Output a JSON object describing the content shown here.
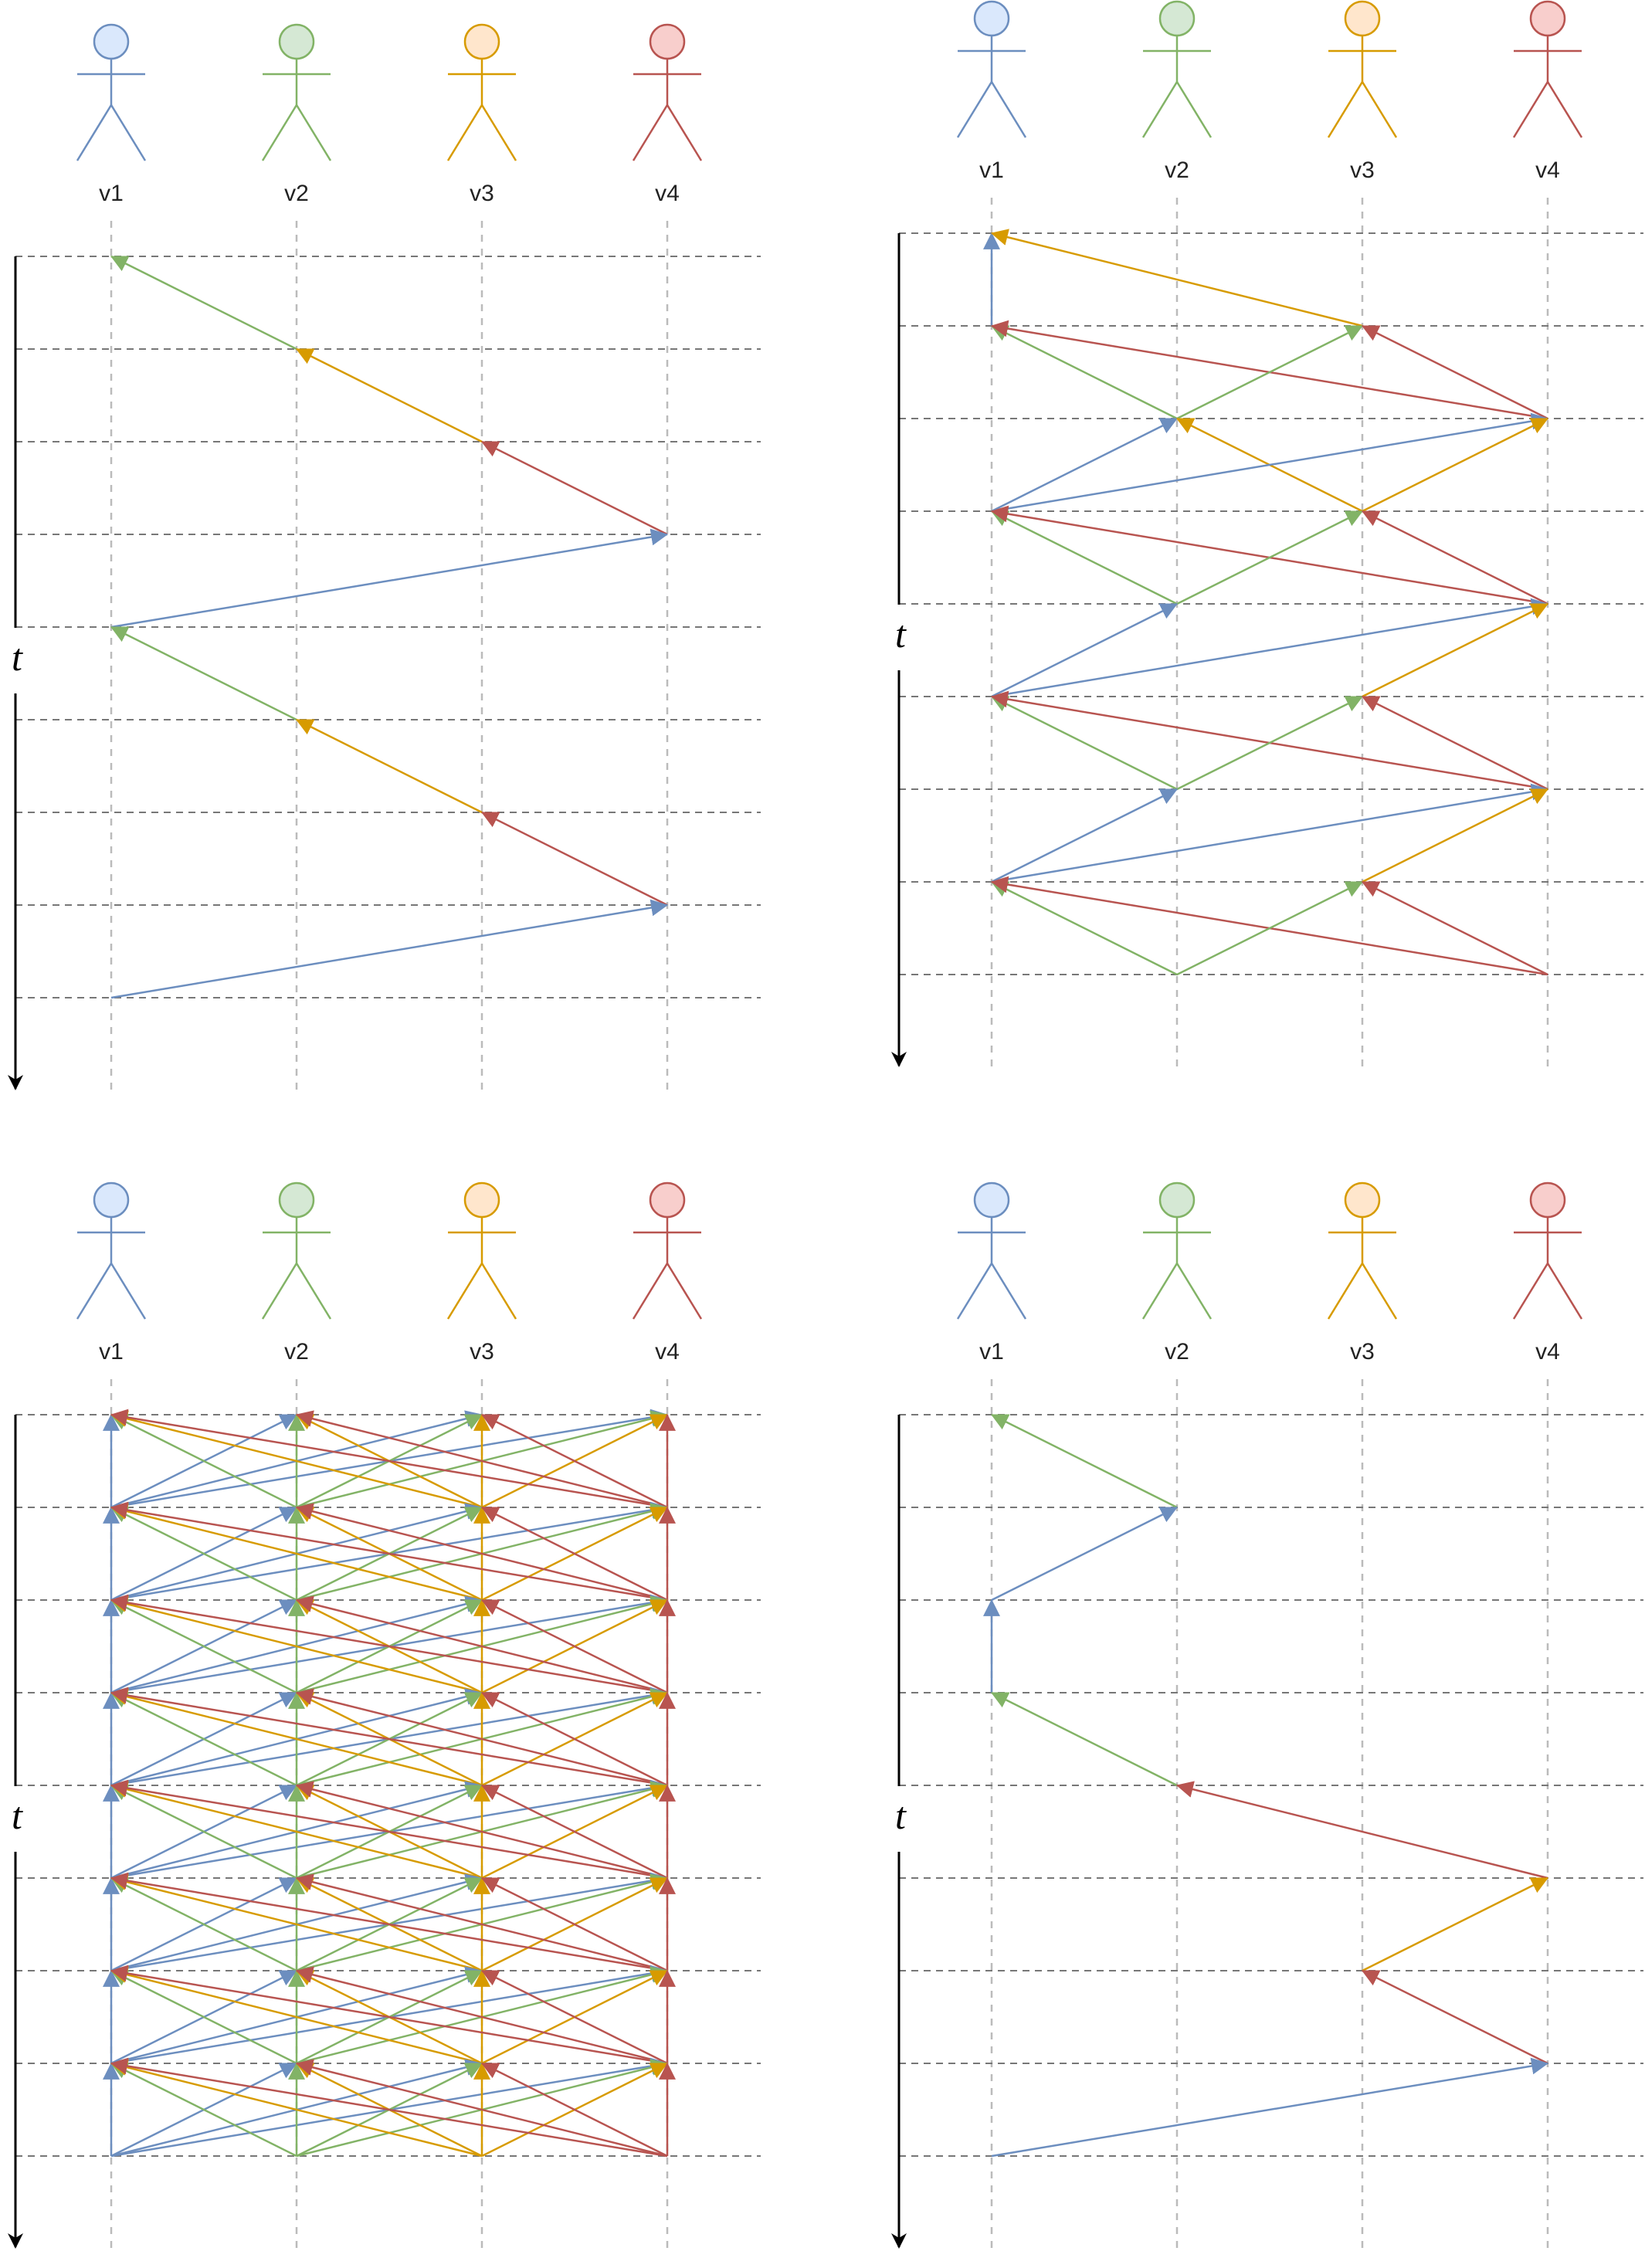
{
  "colors": {
    "v1": {
      "stroke": "#6c8ebf",
      "fill": "#dae8fc"
    },
    "v2": {
      "stroke": "#82b366",
      "fill": "#d5e8d4"
    },
    "v3": {
      "stroke": "#d79b00",
      "fill": "#ffe6cc"
    },
    "v4": {
      "stroke": "#b85450",
      "fill": "#f8cecc"
    },
    "lane": "#bbbbbb",
    "grid": "#777777",
    "axis": "#000000"
  },
  "panels": [
    {
      "name": "top-left",
      "actors": [
        "v1",
        "v2",
        "v3",
        "v4"
      ],
      "time_label": "t",
      "steps": 9,
      "edges": [
        {
          "from": [
            "v2",
            1
          ],
          "to": [
            "v1",
            0
          ]
        },
        {
          "from": [
            "v3",
            2
          ],
          "to": [
            "v2",
            1
          ]
        },
        {
          "from": [
            "v4",
            3
          ],
          "to": [
            "v3",
            2
          ]
        },
        {
          "from": [
            "v1",
            4
          ],
          "to": [
            "v4",
            3
          ]
        },
        {
          "from": [
            "v2",
            5
          ],
          "to": [
            "v1",
            4
          ]
        },
        {
          "from": [
            "v3",
            6
          ],
          "to": [
            "v2",
            5
          ]
        },
        {
          "from": [
            "v4",
            7
          ],
          "to": [
            "v3",
            6
          ]
        },
        {
          "from": [
            "v1",
            8
          ],
          "to": [
            "v4",
            7
          ]
        }
      ]
    },
    {
      "name": "top-right",
      "actors": [
        "v1",
        "v2",
        "v3",
        "v4"
      ],
      "time_label": "t",
      "steps": 9,
      "edges": [
        {
          "from": [
            "v1",
            1
          ],
          "to": [
            "v1",
            0
          ]
        },
        {
          "from": [
            "v3",
            1
          ],
          "to": [
            "v1",
            0
          ]
        },
        {
          "from": [
            "v2",
            2
          ],
          "to": [
            "v1",
            1
          ]
        },
        {
          "from": [
            "v4",
            2
          ],
          "to": [
            "v1",
            1
          ]
        },
        {
          "from": [
            "v2",
            2
          ],
          "to": [
            "v3",
            1
          ]
        },
        {
          "from": [
            "v4",
            2
          ],
          "to": [
            "v3",
            1
          ]
        },
        {
          "from": [
            "v1",
            3
          ],
          "to": [
            "v2",
            2
          ]
        },
        {
          "from": [
            "v3",
            3
          ],
          "to": [
            "v2",
            2
          ]
        },
        {
          "from": [
            "v1",
            3
          ],
          "to": [
            "v4",
            2
          ]
        },
        {
          "from": [
            "v3",
            3
          ],
          "to": [
            "v4",
            2
          ]
        },
        {
          "from": [
            "v2",
            4
          ],
          "to": [
            "v1",
            3
          ]
        },
        {
          "from": [
            "v4",
            4
          ],
          "to": [
            "v1",
            3
          ]
        },
        {
          "from": [
            "v2",
            4
          ],
          "to": [
            "v3",
            3
          ]
        },
        {
          "from": [
            "v4",
            4
          ],
          "to": [
            "v3",
            3
          ]
        },
        {
          "from": [
            "v1",
            5
          ],
          "to": [
            "v2",
            4
          ]
        },
        {
          "from": [
            "v1",
            5
          ],
          "to": [
            "v4",
            4
          ]
        },
        {
          "from": [
            "v3",
            5
          ],
          "to": [
            "v4",
            4
          ]
        },
        {
          "from": [
            "v2",
            6
          ],
          "to": [
            "v1",
            5
          ]
        },
        {
          "from": [
            "v4",
            6
          ],
          "to": [
            "v1",
            5
          ]
        },
        {
          "from": [
            "v2",
            6
          ],
          "to": [
            "v3",
            5
          ]
        },
        {
          "from": [
            "v4",
            6
          ],
          "to": [
            "v3",
            5
          ]
        },
        {
          "from": [
            "v1",
            7
          ],
          "to": [
            "v2",
            6
          ]
        },
        {
          "from": [
            "v1",
            7
          ],
          "to": [
            "v4",
            6
          ]
        },
        {
          "from": [
            "v3",
            7
          ],
          "to": [
            "v4",
            6
          ]
        },
        {
          "from": [
            "v2",
            8
          ],
          "to": [
            "v1",
            7
          ]
        },
        {
          "from": [
            "v4",
            8
          ],
          "to": [
            "v1",
            7
          ]
        },
        {
          "from": [
            "v2",
            8
          ],
          "to": [
            "v3",
            7
          ]
        },
        {
          "from": [
            "v4",
            8
          ],
          "to": [
            "v3",
            7
          ]
        }
      ]
    },
    {
      "name": "bottom-left",
      "actors": [
        "v1",
        "v2",
        "v3",
        "v4"
      ],
      "time_label": "t",
      "steps": 9,
      "complete": true,
      "edges": []
    },
    {
      "name": "bottom-right",
      "actors": [
        "v1",
        "v2",
        "v3",
        "v4"
      ],
      "time_label": "t",
      "steps": 9,
      "edges": [
        {
          "from": [
            "v2",
            1
          ],
          "to": [
            "v1",
            0
          ]
        },
        {
          "from": [
            "v1",
            2
          ],
          "to": [
            "v2",
            1
          ]
        },
        {
          "from": [
            "v1",
            3
          ],
          "to": [
            "v1",
            2
          ]
        },
        {
          "from": [
            "v2",
            4
          ],
          "to": [
            "v1",
            3
          ]
        },
        {
          "from": [
            "v4",
            5
          ],
          "to": [
            "v2",
            4
          ]
        },
        {
          "from": [
            "v3",
            6
          ],
          "to": [
            "v4",
            5
          ]
        },
        {
          "from": [
            "v4",
            7
          ],
          "to": [
            "v3",
            6
          ]
        },
        {
          "from": [
            "v1",
            8
          ],
          "to": [
            "v4",
            7
          ]
        }
      ]
    }
  ]
}
